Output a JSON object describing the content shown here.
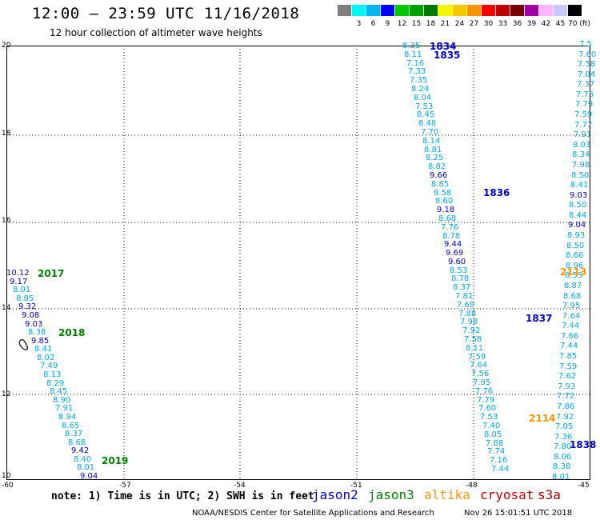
{
  "header": {
    "title": "12:00 – 23:59 UTC 11/16/2018",
    "subtitle": "12 hour collection of altimeter wave heights"
  },
  "color_scale": {
    "colors": [
      "#7f7f7f",
      "#00f5f5",
      "#00b4f5",
      "#0000f5",
      "#00c800",
      "#00a000",
      "#007800",
      "#f5f500",
      "#f5c800",
      "#f59600",
      "#f50000",
      "#be0000",
      "#780000",
      "#a000a0",
      "#ffb4ff",
      "#c8c8ff",
      "#000000"
    ],
    "labels": [
      "",
      "3",
      "6",
      "9",
      "12",
      "15",
      "18",
      "21",
      "24",
      "27",
      "30",
      "33",
      "36",
      "39",
      "42",
      "45",
      "70 (ft)"
    ]
  },
  "axes": {
    "y_ticks": [
      "20",
      "18",
      "16",
      "14",
      "12",
      "10"
    ],
    "x_ticks": [
      "-60",
      "-57",
      "-54",
      "-51",
      "-48",
      "-45"
    ]
  },
  "pass_labels": [
    {
      "text": "1834",
      "color": "#0000c8"
    },
    {
      "text": "1835",
      "color": "#0000c8"
    },
    {
      "text": "1836",
      "color": "#0000c8"
    },
    {
      "text": "1837",
      "color": "#0000c8"
    },
    {
      "text": "1838",
      "color": "#0000c8"
    },
    {
      "text": "2017",
      "color": "#008000"
    },
    {
      "text": "2018",
      "color": "#008000"
    },
    {
      "text": "2019",
      "color": "#008000"
    },
    {
      "text": "2113",
      "color": "#ff9600"
    },
    {
      "text": "2114",
      "color": "#ff9600"
    }
  ],
  "track_a": [
    "8.35",
    "8.11",
    "7.16",
    "7.33",
    "7.35",
    "8.24",
    "8.04",
    "7.53",
    "8.45",
    "8.48",
    "7.70",
    "8.14",
    "8.81",
    "8.25",
    "8.82",
    "9.66",
    "8.85",
    "8.58",
    "8.60",
    "9.18",
    "8.68",
    "7.76",
    "8.78",
    "9.44",
    "9.69",
    "9.60",
    "8.53",
    "8.78",
    "8.37",
    "7.81",
    "7.69",
    "7.88",
    "7.98",
    "7.92",
    "7.58",
    "8.11",
    "7.59",
    "7.64",
    "7.56",
    "7.95",
    "7.76",
    "7.79",
    "7.60",
    "7.53",
    "7.40",
    "8.05",
    "7.88",
    "7.74",
    "7.16",
    "7.44"
  ],
  "track_b": [
    "7.5",
    "7.60",
    "7.58",
    "7.04",
    "7.37",
    "7.75",
    "7.79",
    "7.59",
    "7.77",
    "7.91",
    "8.03",
    "8.34",
    "7.98",
    "8.50",
    "8.41",
    "9.03",
    "8.50",
    "8.44",
    "9.04",
    "8.93",
    "8.50",
    "8.66",
    "8.96",
    "8.53",
    "8.87",
    "8.68",
    "7.95",
    "7.64",
    "7.44",
    "7.66",
    "7.44",
    "7.85",
    "7.59",
    "7.62",
    "7.93",
    "7.72",
    "7.86",
    "7.92",
    "7.05",
    "7.36",
    "7.80",
    "8.06",
    "8.38",
    "8.01"
  ],
  "track_c": [
    "10.12",
    "9.17",
    "8.01",
    "8.85",
    "9.32",
    "9.08",
    "9.03",
    "8.38",
    "9.85",
    "8.41",
    "8.02",
    "7.49",
    "8.13",
    "8.29",
    "8.45",
    "8.90",
    "7.91",
    "8.94",
    "8.65",
    "8.37",
    "8.68",
    "9.42",
    "8.40",
    "8.01",
    "9.04"
  ],
  "footer": {
    "note": "note: 1) Time is in UTC; 2) SWH is in feet",
    "legend": [
      {
        "label": "jason2",
        "color": "#0000c8"
      },
      {
        "label": "jason3",
        "color": "#008000"
      },
      {
        "label": "altika",
        "color": "#ff9600"
      },
      {
        "label": "cryosat",
        "color": "#c80000"
      },
      {
        "label": "s3a",
        "color": "#a00000"
      }
    ],
    "credit": "NOAA/NESDIS Center for Satellite Applications and Research",
    "timestamp": "Nov 26 15:01:51 UTC 2018"
  }
}
